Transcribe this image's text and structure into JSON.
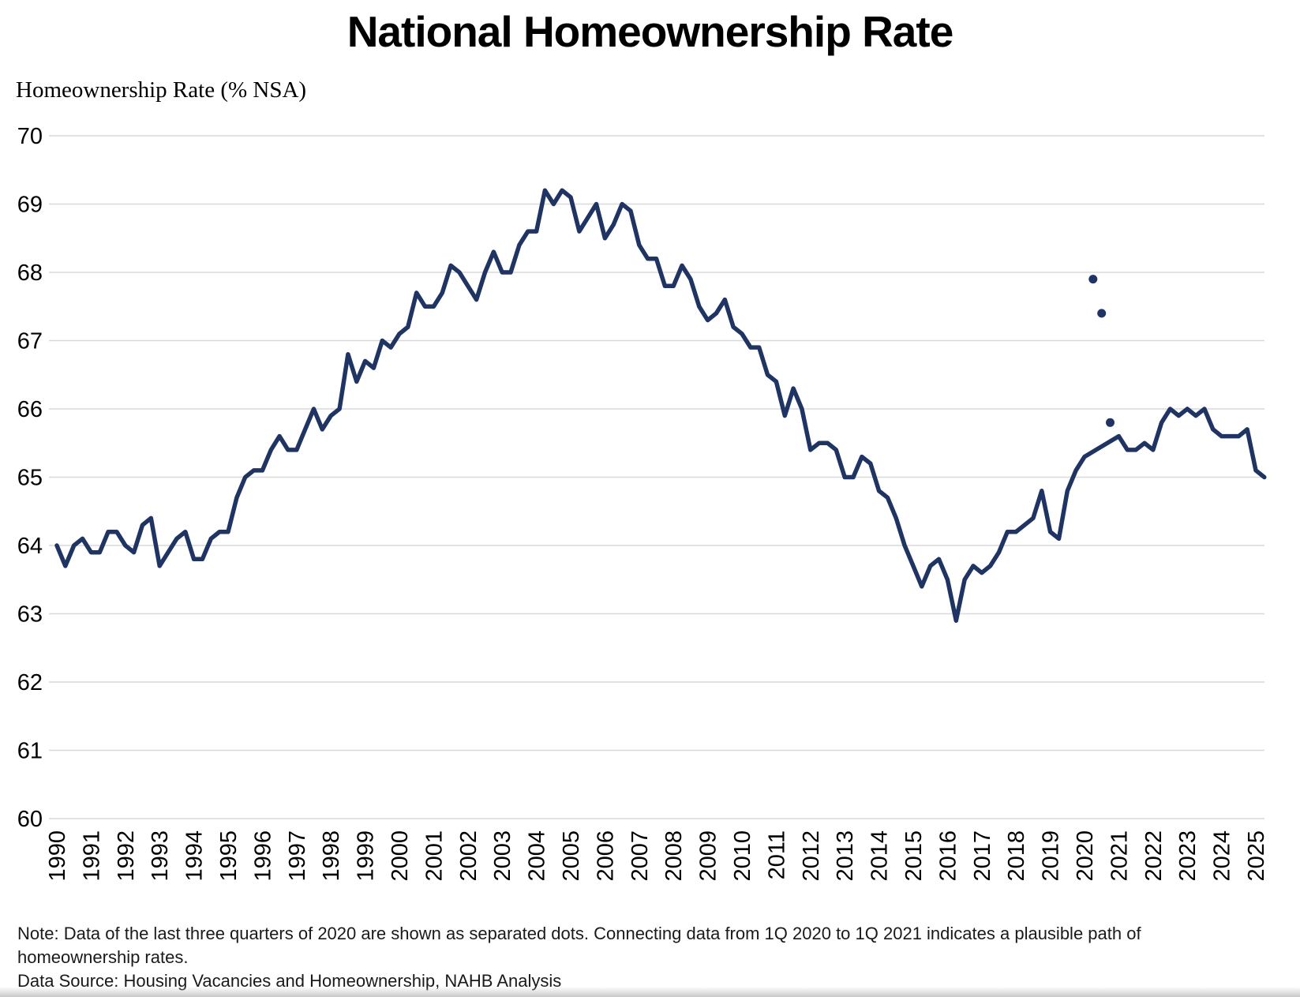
{
  "chart_data": {
    "type": "line",
    "title": "National Homeownership Rate",
    "ylabel": "Homeownership Rate (% NSA)",
    "ylim": [
      60,
      70
    ],
    "grid": "horizontal",
    "legend": "none",
    "y_ticks": [
      70,
      69,
      68,
      67,
      66,
      65,
      64,
      63,
      62,
      61,
      60
    ],
    "x_tick_years": [
      "1990",
      "1991",
      "1992",
      "1993",
      "1994",
      "1995",
      "1996",
      "1997",
      "1998",
      "1999",
      "2000",
      "2001",
      "2002",
      "2003",
      "2004",
      "2005",
      "2006",
      "2007",
      "2008",
      "2009",
      "2010",
      "2011",
      "2012",
      "2013",
      "2014",
      "2015",
      "2016",
      "2017",
      "2018",
      "2019",
      "2020",
      "2021",
      "2022",
      "2023",
      "2024",
      "2025"
    ],
    "colors": {
      "line": "#1f3463",
      "dot": "#1f3463",
      "gridline": "#d9d9d9",
      "axis_text": "#000000"
    },
    "series": [
      {
        "name": "Homeownership rate, quarterly NSA (1Q 2020 connected directly to 1Q 2021)",
        "points": [
          [
            "1990Q1",
            64.0
          ],
          [
            "1990Q2",
            63.7
          ],
          [
            "1990Q3",
            64.0
          ],
          [
            "1990Q4",
            64.1
          ],
          [
            "1991Q1",
            63.9
          ],
          [
            "1991Q2",
            63.9
          ],
          [
            "1991Q3",
            64.2
          ],
          [
            "1991Q4",
            64.2
          ],
          [
            "1992Q1",
            64.0
          ],
          [
            "1992Q2",
            63.9
          ],
          [
            "1992Q3",
            64.3
          ],
          [
            "1992Q4",
            64.4
          ],
          [
            "1993Q1",
            63.7
          ],
          [
            "1993Q2",
            63.9
          ],
          [
            "1993Q3",
            64.1
          ],
          [
            "1993Q4",
            64.2
          ],
          [
            "1994Q1",
            63.8
          ],
          [
            "1994Q2",
            63.8
          ],
          [
            "1994Q3",
            64.1
          ],
          [
            "1994Q4",
            64.2
          ],
          [
            "1995Q1",
            64.2
          ],
          [
            "1995Q2",
            64.7
          ],
          [
            "1995Q3",
            65.0
          ],
          [
            "1995Q4",
            65.1
          ],
          [
            "1996Q1",
            65.1
          ],
          [
            "1996Q2",
            65.4
          ],
          [
            "1996Q3",
            65.6
          ],
          [
            "1996Q4",
            65.4
          ],
          [
            "1997Q1",
            65.4
          ],
          [
            "1997Q2",
            65.7
          ],
          [
            "1997Q3",
            66.0
          ],
          [
            "1997Q4",
            65.7
          ],
          [
            "1998Q1",
            65.9
          ],
          [
            "1998Q2",
            66.0
          ],
          [
            "1998Q3",
            66.8
          ],
          [
            "1998Q4",
            66.4
          ],
          [
            "1999Q1",
            66.7
          ],
          [
            "1999Q2",
            66.6
          ],
          [
            "1999Q3",
            67.0
          ],
          [
            "1999Q4",
            66.9
          ],
          [
            "2000Q1",
            67.1
          ],
          [
            "2000Q2",
            67.2
          ],
          [
            "2000Q3",
            67.7
          ],
          [
            "2000Q4",
            67.5
          ],
          [
            "2001Q1",
            67.5
          ],
          [
            "2001Q2",
            67.7
          ],
          [
            "2001Q3",
            68.1
          ],
          [
            "2001Q4",
            68.0
          ],
          [
            "2002Q1",
            67.8
          ],
          [
            "2002Q2",
            67.6
          ],
          [
            "2002Q3",
            68.0
          ],
          [
            "2002Q4",
            68.3
          ],
          [
            "2003Q1",
            68.0
          ],
          [
            "2003Q2",
            68.0
          ],
          [
            "2003Q3",
            68.4
          ],
          [
            "2003Q4",
            68.6
          ],
          [
            "2004Q1",
            68.6
          ],
          [
            "2004Q2",
            69.2
          ],
          [
            "2004Q3",
            69.0
          ],
          [
            "2004Q4",
            69.2
          ],
          [
            "2005Q1",
            69.1
          ],
          [
            "2005Q2",
            68.6
          ],
          [
            "2005Q3",
            68.8
          ],
          [
            "2005Q4",
            69.0
          ],
          [
            "2006Q1",
            68.5
          ],
          [
            "2006Q2",
            68.7
          ],
          [
            "2006Q3",
            69.0
          ],
          [
            "2006Q4",
            68.9
          ],
          [
            "2007Q1",
            68.4
          ],
          [
            "2007Q2",
            68.2
          ],
          [
            "2007Q3",
            68.2
          ],
          [
            "2007Q4",
            67.8
          ],
          [
            "2008Q1",
            67.8
          ],
          [
            "2008Q2",
            68.1
          ],
          [
            "2008Q3",
            67.9
          ],
          [
            "2008Q4",
            67.5
          ],
          [
            "2009Q1",
            67.3
          ],
          [
            "2009Q2",
            67.4
          ],
          [
            "2009Q3",
            67.6
          ],
          [
            "2009Q4",
            67.2
          ],
          [
            "2010Q1",
            67.1
          ],
          [
            "2010Q2",
            66.9
          ],
          [
            "2010Q3",
            66.9
          ],
          [
            "2010Q4",
            66.5
          ],
          [
            "2011Q1",
            66.4
          ],
          [
            "2011Q2",
            65.9
          ],
          [
            "2011Q3",
            66.3
          ],
          [
            "2011Q4",
            66.0
          ],
          [
            "2012Q1",
            65.4
          ],
          [
            "2012Q2",
            65.5
          ],
          [
            "2012Q3",
            65.5
          ],
          [
            "2012Q4",
            65.4
          ],
          [
            "2013Q1",
            65.0
          ],
          [
            "2013Q2",
            65.0
          ],
          [
            "2013Q3",
            65.3
          ],
          [
            "2013Q4",
            65.2
          ],
          [
            "2014Q1",
            64.8
          ],
          [
            "2014Q2",
            64.7
          ],
          [
            "2014Q3",
            64.4
          ],
          [
            "2014Q4",
            64.0
          ],
          [
            "2015Q1",
            63.7
          ],
          [
            "2015Q2",
            63.4
          ],
          [
            "2015Q3",
            63.7
          ],
          [
            "2015Q4",
            63.8
          ],
          [
            "2016Q1",
            63.5
          ],
          [
            "2016Q2",
            62.9
          ],
          [
            "2016Q3",
            63.5
          ],
          [
            "2016Q4",
            63.7
          ],
          [
            "2017Q1",
            63.6
          ],
          [
            "2017Q2",
            63.7
          ],
          [
            "2017Q3",
            63.9
          ],
          [
            "2017Q4",
            64.2
          ],
          [
            "2018Q1",
            64.2
          ],
          [
            "2018Q2",
            64.3
          ],
          [
            "2018Q3",
            64.4
          ],
          [
            "2018Q4",
            64.8
          ],
          [
            "2019Q1",
            64.2
          ],
          [
            "2019Q2",
            64.1
          ],
          [
            "2019Q3",
            64.8
          ],
          [
            "2019Q4",
            65.1
          ],
          [
            "2020Q1",
            65.3
          ],
          [
            "2021Q1",
            65.6
          ],
          [
            "2021Q2",
            65.4
          ],
          [
            "2021Q3",
            65.4
          ],
          [
            "2021Q4",
            65.5
          ],
          [
            "2022Q1",
            65.4
          ],
          [
            "2022Q2",
            65.8
          ],
          [
            "2022Q3",
            66.0
          ],
          [
            "2022Q4",
            65.9
          ],
          [
            "2023Q1",
            66.0
          ],
          [
            "2023Q2",
            65.9
          ],
          [
            "2023Q3",
            66.0
          ],
          [
            "2023Q4",
            65.7
          ],
          [
            "2024Q1",
            65.6
          ],
          [
            "2024Q2",
            65.6
          ],
          [
            "2024Q3",
            65.6
          ],
          [
            "2024Q4",
            65.7
          ],
          [
            "2025Q1",
            65.1
          ],
          [
            "2025Q2",
            65.0
          ]
        ]
      }
    ],
    "separated_dots": {
      "name": "Last three quarters of 2020 (shown as separated dots)",
      "points": [
        [
          "2020Q2",
          67.9
        ],
        [
          "2020Q3",
          67.4
        ],
        [
          "2020Q4",
          65.8
        ]
      ]
    }
  },
  "footer": {
    "note": "Note: Data of the last three quarters of 2020 are shown as separated dots. Connecting data from 1Q 2020 to 1Q 2021 indicates a plausible path of homeownership rates.",
    "source": "Data Source: Housing Vacancies and Homeownership, NAHB Analysis"
  }
}
